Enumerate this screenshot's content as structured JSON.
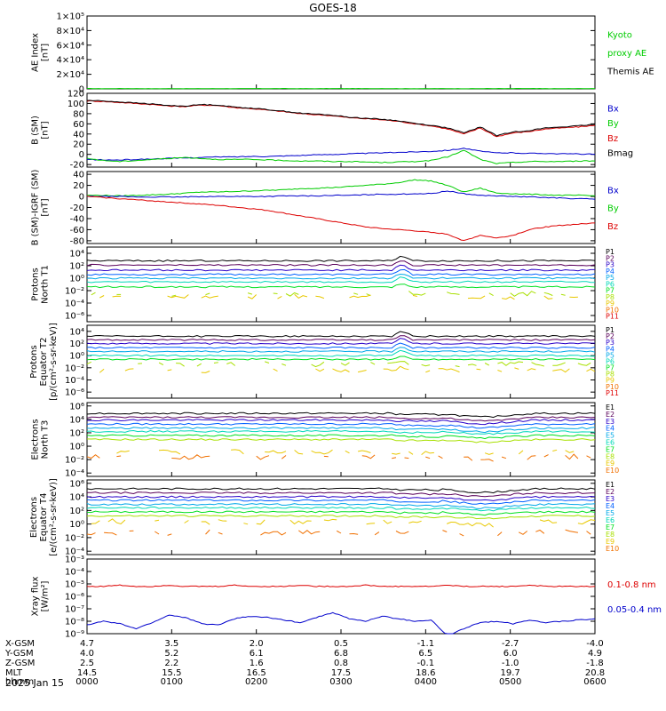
{
  "title": "GOES-18",
  "date_label": "2025 Jan 15",
  "colors": {
    "black": "#000000",
    "red": "#dd0000",
    "green": "#00cc00",
    "blue": "#0000cc",
    "proton": [
      "#000000",
      "#5a005a",
      "#2a00c8",
      "#0060ff",
      "#00a8e8",
      "#00d8b8",
      "#00e020",
      "#a8e000",
      "#e8c800",
      "#f07000",
      "#e00000"
    ],
    "electron": [
      "#000000",
      "#5a005a",
      "#2a00c8",
      "#0060ff",
      "#00a8e8",
      "#00d8b8",
      "#00e020",
      "#a8e000",
      "#e8c800",
      "#f07000",
      "#d00000"
    ]
  },
  "chart_data": [
    {
      "id": "ae",
      "type": "line",
      "ylabel": [
        "AE Index",
        "[nT]"
      ],
      "ticks": [
        "1×10⁵",
        "8×10⁴",
        "6×10⁴",
        "4×10⁴",
        "2×10⁴",
        "0"
      ],
      "tick_values": [
        100000,
        80000,
        60000,
        40000,
        20000,
        0
      ],
      "ylim": [
        0,
        100000
      ],
      "log": false,
      "legend": [
        {
          "text": "Kyoto",
          "color": "#00cc00"
        },
        {
          "text": "proxy AE",
          "color": "#00cc00"
        },
        {
          "text": "Themis AE",
          "color": "#000000"
        }
      ],
      "series": [
        {
          "color": "#00cc00",
          "values": [
            400,
            300,
            500,
            350,
            250,
            400,
            300,
            450,
            350,
            300,
            500,
            400,
            350,
            300,
            450,
            400,
            350,
            500,
            300,
            250,
            400,
            350,
            300,
            450,
            400,
            500,
            350,
            300,
            400,
            350
          ]
        }
      ]
    },
    {
      "id": "bsm",
      "type": "line",
      "ylabel": [
        "B (SM)",
        "[nT]"
      ],
      "ticks": [
        "120",
        "100",
        "80",
        "60",
        "40",
        "20",
        "0",
        "-20"
      ],
      "tick_values": [
        120,
        100,
        80,
        60,
        40,
        20,
        0,
        -20
      ],
      "ylim": [
        -25,
        120
      ],
      "log": false,
      "legend": [
        {
          "text": "Bx",
          "color": "#0000cc"
        },
        {
          "text": "By",
          "color": "#00cc00"
        },
        {
          "text": "Bz",
          "color": "#dd0000"
        },
        {
          "text": "Bmag",
          "color": "#000000"
        }
      ],
      "series": [
        {
          "color": "#dd0000",
          "values": [
            105,
            104,
            102,
            100,
            98,
            95,
            94,
            97,
            96,
            92,
            90,
            87,
            84,
            80,
            78,
            76,
            72,
            70,
            68,
            65,
            60,
            56,
            50,
            40,
            52,
            35,
            42,
            45,
            50,
            52,
            54,
            57
          ]
        },
        {
          "color": "#000000",
          "values": [
            106,
            105,
            103,
            101,
            99,
            96,
            95,
            98,
            97,
            93,
            91,
            88,
            85,
            81,
            79,
            77,
            73,
            71,
            69,
            66,
            61,
            57,
            52,
            42,
            54,
            37,
            44,
            47,
            52,
            54,
            56,
            59
          ]
        },
        {
          "color": "#0000cc",
          "values": [
            -10,
            -11,
            -11,
            -10,
            -9,
            -8,
            -7,
            -6,
            -5,
            -5,
            -4,
            -4,
            -3,
            -2,
            -1,
            0,
            1,
            2,
            3,
            4,
            5,
            6,
            8,
            12,
            6,
            3,
            3,
            2,
            2,
            1,
            1,
            0
          ]
        },
        {
          "color": "#00cc00",
          "values": [
            -8,
            -12,
            -14,
            -12,
            -10,
            -8,
            -6,
            -8,
            -10,
            -10,
            -10,
            -11,
            -12,
            -13,
            -13,
            -14,
            -14,
            -15,
            -16,
            -15,
            -14,
            -12,
            -5,
            8,
            -10,
            -18,
            -16,
            -14,
            -14,
            -14,
            -13,
            -13
          ]
        }
      ]
    },
    {
      "id": "bigrf",
      "type": "line",
      "ylabel": [
        "B (SM)-IGRF (SM)",
        "[nT]"
      ],
      "ticks": [
        "40",
        "20",
        "0",
        "-20",
        "-40",
        "-60",
        "-80"
      ],
      "tick_values": [
        40,
        20,
        0,
        -20,
        -40,
        -60,
        -80
      ],
      "ylim": [
        -85,
        45
      ],
      "log": false,
      "legend": [
        {
          "text": "Bx",
          "color": "#0000cc"
        },
        {
          "text": "By",
          "color": "#00cc00"
        },
        {
          "text": "Bz",
          "color": "#dd0000"
        }
      ],
      "series": [
        {
          "color": "#00cc00",
          "values": [
            2,
            2,
            1,
            2,
            3,
            4,
            6,
            8,
            8,
            9,
            10,
            11,
            12,
            14,
            15,
            16,
            18,
            20,
            22,
            25,
            30,
            28,
            20,
            8,
            15,
            6,
            5,
            4,
            3,
            2,
            2,
            1
          ]
        },
        {
          "color": "#0000cc",
          "values": [
            0,
            0,
            0,
            -1,
            -1,
            -1,
            -1,
            0,
            0,
            0,
            0,
            0,
            1,
            1,
            1,
            2,
            2,
            3,
            4,
            4,
            5,
            5,
            10,
            5,
            2,
            1,
            0,
            -1,
            -2,
            -3,
            -4,
            -5
          ]
        },
        {
          "color": "#dd0000",
          "values": [
            0,
            -2,
            -4,
            -6,
            -8,
            -10,
            -12,
            -14,
            -16,
            -19,
            -22,
            -25,
            -30,
            -35,
            -40,
            -45,
            -50,
            -55,
            -58,
            -60,
            -62,
            -65,
            -68,
            -80,
            -70,
            -75,
            -70,
            -60,
            -55,
            -52,
            -50,
            -48
          ]
        }
      ]
    },
    {
      "id": "pn",
      "type": "line",
      "ylabel": [
        "Protons",
        "North T1"
      ],
      "ticks": [
        "10⁴",
        "10²",
        "10⁰",
        "10⁻²",
        "10⁻⁴",
        "10⁻⁶"
      ],
      "tick_values": [
        4,
        2,
        0,
        -2,
        -4,
        -6
      ],
      "ylim": [
        -7,
        5
      ],
      "log": true,
      "legend": [
        {
          "text": "P1"
        },
        {
          "text": "P2"
        },
        {
          "text": "P3"
        },
        {
          "text": "P4"
        },
        {
          "text": "P5"
        },
        {
          "text": "P6"
        },
        {
          "text": "P7"
        },
        {
          "text": "P8"
        },
        {
          "text": "P9"
        },
        {
          "text": "P10"
        },
        {
          "text": "P11"
        }
      ],
      "levels": [
        2.8,
        2.1,
        1.3,
        0.6,
        0.0,
        -0.6,
        -1.4,
        -2.5,
        -3.0,
        -99,
        -99
      ],
      "spike_at": 0.62
    },
    {
      "id": "pe",
      "type": "line",
      "ylabel": [
        "Protons",
        "Equator T2",
        "[p/(cm²-s-sr-keV)]"
      ],
      "ticks": [
        "10⁴",
        "10²",
        "10⁰",
        "10⁻²",
        "10⁻⁴",
        "10⁻⁶"
      ],
      "tick_values": [
        4,
        2,
        0,
        -2,
        -4,
        -6
      ],
      "ylim": [
        -7,
        5
      ],
      "log": true,
      "legend": [
        {
          "text": "P1"
        },
        {
          "text": "P2"
        },
        {
          "text": "P3"
        },
        {
          "text": "P4"
        },
        {
          "text": "P5"
        },
        {
          "text": "P6"
        },
        {
          "text": "P7"
        },
        {
          "text": "P8"
        },
        {
          "text": "P9"
        },
        {
          "text": "P10"
        },
        {
          "text": "P11"
        }
      ],
      "levels": [
        3.2,
        2.6,
        2.0,
        1.3,
        0.7,
        0.0,
        -0.6,
        -1.4,
        -2.4,
        -99,
        -99
      ],
      "spike_at": 0.62
    },
    {
      "id": "en",
      "type": "line",
      "ylabel": [
        "Electrons",
        "North T3"
      ],
      "ticks": [
        "10⁶",
        "10⁴",
        "10²",
        "10⁰",
        "10⁻²",
        "10⁻⁴"
      ],
      "tick_values": [
        6,
        4,
        2,
        0,
        -2,
        -4
      ],
      "ylim": [
        -4.5,
        6.5
      ],
      "log": true,
      "legend": [
        {
          "text": "E1"
        },
        {
          "text": "E2"
        },
        {
          "text": "E3"
        },
        {
          "text": "E4"
        },
        {
          "text": "E5"
        },
        {
          "text": "E6"
        },
        {
          "text": "E7"
        },
        {
          "text": "E8"
        },
        {
          "text": "E9"
        },
        {
          "text": "E10"
        }
      ],
      "levels": [
        4.9,
        4.3,
        3.9,
        3.3,
        2.7,
        2.2,
        1.6,
        1.0,
        -0.8,
        -1.6
      ],
      "dip_at": 0.78
    },
    {
      "id": "ee",
      "type": "line",
      "ylabel": [
        "Electrons",
        "Equator T4",
        "[e/(cm²-s-sr-keV)]"
      ],
      "ticks": [
        "10⁶",
        "10⁴",
        "10²",
        "10⁰",
        "10⁻²",
        "10⁻⁴"
      ],
      "tick_values": [
        6,
        4,
        2,
        0,
        -2,
        -4
      ],
      "ylim": [
        -4.5,
        6.5
      ],
      "log": true,
      "legend": [
        {
          "text": "E1"
        },
        {
          "text": "E2"
        },
        {
          "text": "E3"
        },
        {
          "text": "E4"
        },
        {
          "text": "E5"
        },
        {
          "text": "E6"
        },
        {
          "text": "E7"
        },
        {
          "text": "E8"
        },
        {
          "text": "E9"
        },
        {
          "text": "E10"
        }
      ],
      "levels": [
        5.2,
        4.6,
        4.0,
        3.5,
        2.9,
        2.4,
        1.8,
        1.2,
        0.3,
        -1.2
      ],
      "dip_at": 0.78
    },
    {
      "id": "xray",
      "type": "line",
      "ylabel": [
        "Xray flux",
        "[W/m²]"
      ],
      "ticks": [
        "10⁻³",
        "10⁻⁴",
        "10⁻⁵",
        "10⁻⁶",
        "10⁻⁷",
        "10⁻⁸",
        "10⁻⁹"
      ],
      "tick_values": [
        -3,
        -4,
        -5,
        -6,
        -7,
        -8,
        -9
      ],
      "ylim": [
        -9,
        -3
      ],
      "log": true,
      "legend": [
        {
          "text": "0.1-0.8 nm",
          "color": "#dd0000"
        },
        {
          "text": "0.05-0.4 nm",
          "color": "#0000cc"
        }
      ],
      "series": [
        {
          "color": "#dd0000",
          "log10_values": [
            -5.2,
            -5.2,
            -5.1,
            -5.2,
            -5.2,
            -5.1,
            -5.2,
            -5.2,
            -5.2,
            -5.1,
            -5.2,
            -5.2,
            -5.2,
            -5.1,
            -5.2,
            -5.2,
            -5.2,
            -5.1,
            -5.2,
            -5.2,
            -5.2,
            -5.2,
            -5.1,
            -5.2,
            -5.2,
            -5.2,
            -5.2,
            -5.1,
            -5.2,
            -5.2,
            -5.2,
            -5.2
          ]
        },
        {
          "color": "#0000cc",
          "log10_values": [
            -8.3,
            -8.0,
            -8.2,
            -8.6,
            -8.1,
            -7.5,
            -7.7,
            -8.2,
            -8.3,
            -7.8,
            -7.6,
            -7.7,
            -7.9,
            -8.1,
            -7.7,
            -7.3,
            -7.8,
            -8.0,
            -7.6,
            -7.8,
            -8.0,
            -7.9,
            -9.2,
            -8.6,
            -8.1,
            -8.0,
            -8.2,
            -7.9,
            -8.1,
            -8.0,
            -7.9,
            -7.8
          ]
        }
      ]
    }
  ],
  "xaxis": {
    "row_labels": [
      "X-GSM",
      "Y-GSM",
      "Z-GSM",
      "MLT",
      "hhmm"
    ],
    "columns": [
      [
        "4.7",
        "4.0",
        "2.5",
        "14.5",
        "0000"
      ],
      [
        "3.5",
        "5.2",
        "2.2",
        "15.5",
        "0100"
      ],
      [
        "2.0",
        "6.1",
        "1.6",
        "16.5",
        "0200"
      ],
      [
        "0.5",
        "6.8",
        "0.8",
        "17.5",
        "0300"
      ],
      [
        "-1.1",
        "6.5",
        "-0.1",
        "18.6",
        "0400"
      ],
      [
        "-2.7",
        "6.0",
        "-1.0",
        "19.7",
        "0500"
      ],
      [
        "-4.0",
        "4.9",
        "-1.8",
        "20.8",
        "0600"
      ]
    ]
  }
}
